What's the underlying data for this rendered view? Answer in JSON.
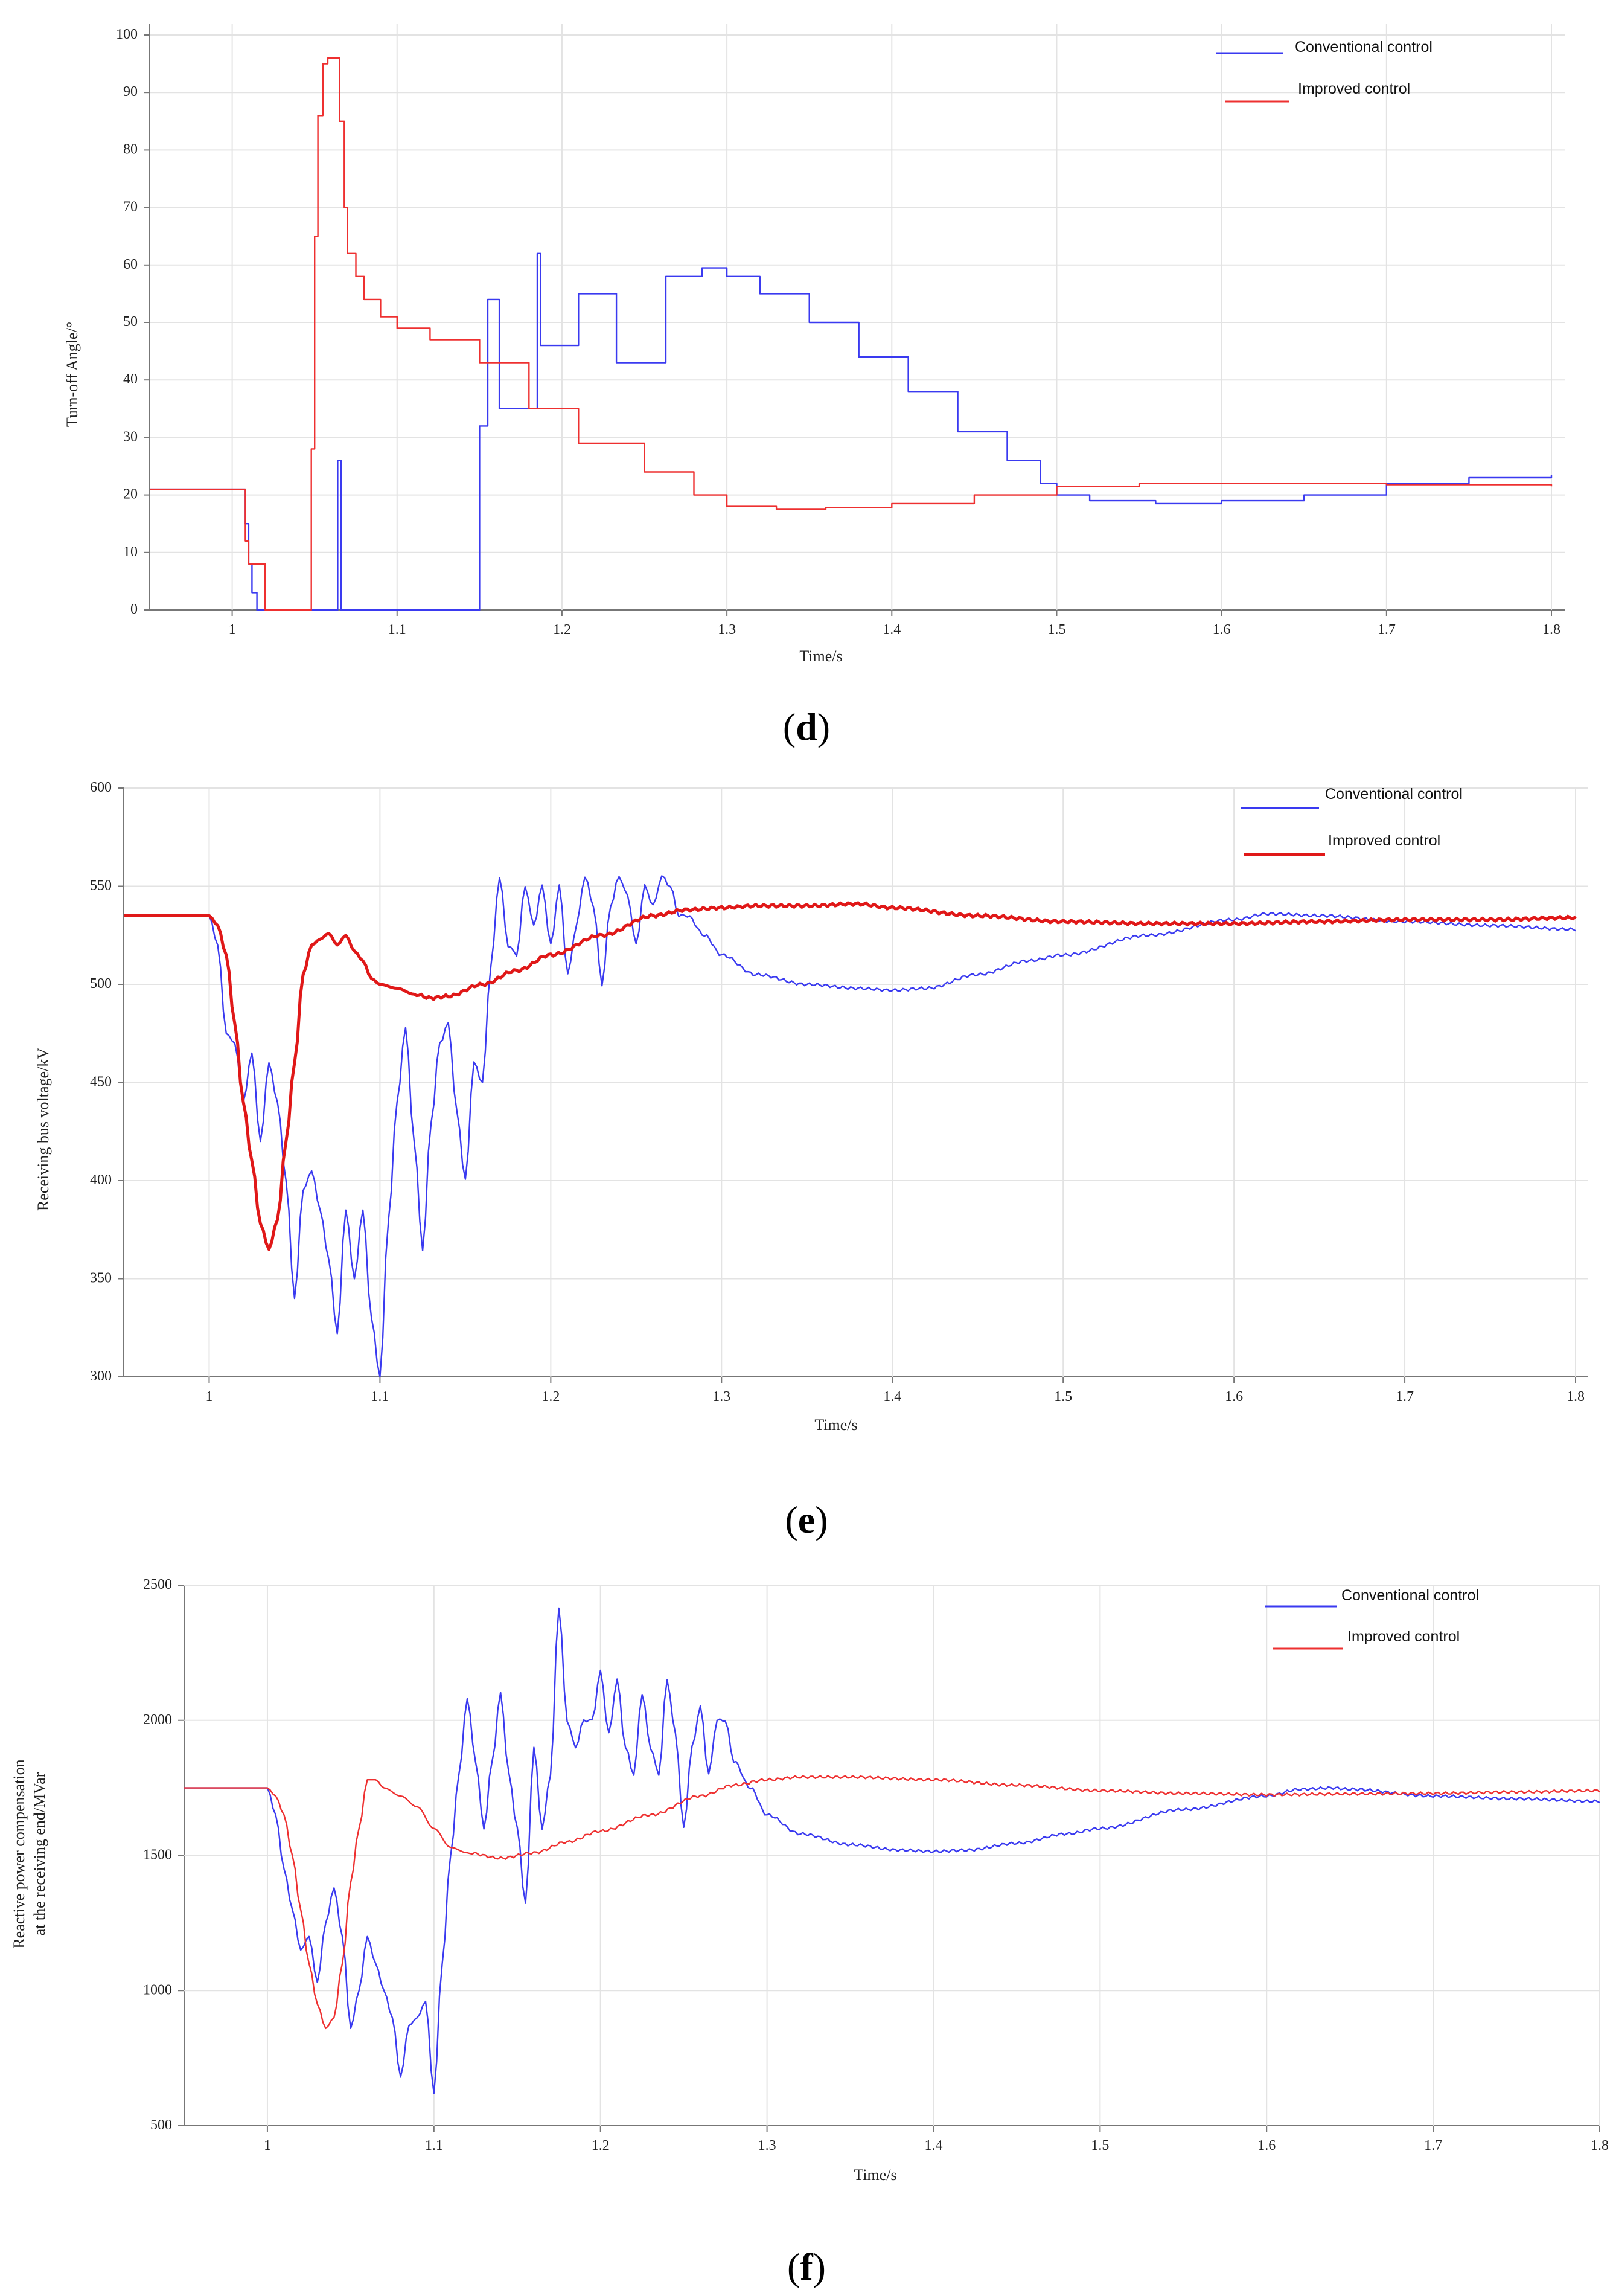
{
  "chart_data": [
    {
      "type": "line",
      "panel_label": "d",
      "xlabel": "Time/s",
      "ylabel": "Turn-off Angle/°",
      "xlim": [
        0.95,
        1.8
      ],
      "ylim": [
        0,
        100
      ],
      "xticks": [
        1,
        1.1,
        1.2,
        1.3,
        1.4,
        1.5,
        1.6,
        1.7,
        1.8
      ],
      "yticks": [
        0,
        10,
        20,
        30,
        40,
        50,
        60,
        70,
        80,
        90,
        100
      ],
      "series": [
        {
          "name": "Conventional control",
          "color": "#3a3af0",
          "step": true,
          "x": [
            0.95,
            1.005,
            1.008,
            1.01,
            1.012,
            1.015,
            1.064,
            1.064,
            1.066,
            1.066,
            1.15,
            1.15,
            1.155,
            1.155,
            1.162,
            1.162,
            1.185,
            1.185,
            1.187,
            1.187,
            1.21,
            1.21,
            1.233,
            1.233,
            1.263,
            1.263,
            1.275,
            1.285,
            1.3,
            1.32,
            1.35,
            1.38,
            1.41,
            1.44,
            1.47,
            1.49,
            1.5,
            1.52,
            1.56,
            1.6,
            1.65,
            1.7,
            1.75,
            1.8
          ],
          "y": [
            21,
            21,
            15,
            8,
            3,
            0,
            0,
            26,
            26,
            0,
            0,
            32,
            32,
            54,
            54,
            35,
            35,
            62,
            62,
            46,
            46,
            55,
            55,
            43,
            43,
            58,
            58,
            59.5,
            58,
            55,
            50,
            44,
            38,
            31,
            26,
            22,
            20,
            19,
            18.5,
            19,
            20,
            22,
            23,
            23.5
          ]
        },
        {
          "name": "Improved control",
          "color": "#ee3030",
          "step": true,
          "x": [
            0.95,
            1.005,
            1.008,
            1.01,
            1.02,
            1.02,
            1.046,
            1.048,
            1.05,
            1.052,
            1.055,
            1.058,
            1.065,
            1.068,
            1.07,
            1.075,
            1.08,
            1.09,
            1.1,
            1.12,
            1.15,
            1.18,
            1.21,
            1.25,
            1.28,
            1.3,
            1.33,
            1.36,
            1.4,
            1.45,
            1.5,
            1.55,
            1.6,
            1.7,
            1.8
          ],
          "y": [
            21,
            21,
            12,
            8,
            8,
            0,
            0,
            28,
            65,
            86,
            95,
            96,
            85,
            70,
            62,
            58,
            54,
            51,
            49,
            47,
            43,
            35,
            29,
            24,
            20,
            18,
            17.5,
            17.8,
            18.5,
            20,
            21.5,
            22,
            22,
            21.8,
            21.5
          ]
        }
      ]
    },
    {
      "type": "line",
      "panel_label": "e",
      "xlabel": "Time/s",
      "ylabel": "Receiving bus voltage/kV",
      "xlim": [
        0.95,
        1.8
      ],
      "ylim": [
        300,
        600
      ],
      "xticks": [
        1,
        1.1,
        1.2,
        1.3,
        1.4,
        1.5,
        1.6,
        1.7,
        1.8
      ],
      "yticks": [
        300,
        350,
        400,
        450,
        500,
        550,
        600
      ],
      "series": [
        {
          "name": "Conventional control",
          "color": "#3a3af0",
          "x": [
            0.95,
            1.0,
            1.005,
            1.01,
            1.015,
            1.02,
            1.025,
            1.03,
            1.035,
            1.04,
            1.045,
            1.05,
            1.055,
            1.06,
            1.065,
            1.07,
            1.075,
            1.08,
            1.085,
            1.09,
            1.095,
            1.1,
            1.105,
            1.11,
            1.115,
            1.12,
            1.125,
            1.13,
            1.135,
            1.14,
            1.145,
            1.15,
            1.155,
            1.16,
            1.165,
            1.17,
            1.175,
            1.18,
            1.185,
            1.19,
            1.195,
            1.2,
            1.205,
            1.21,
            1.215,
            1.22,
            1.225,
            1.23,
            1.235,
            1.24,
            1.245,
            1.25,
            1.255,
            1.26,
            1.265,
            1.27,
            1.275,
            1.28,
            1.29,
            1.3,
            1.32,
            1.35,
            1.38,
            1.4,
            1.42,
            1.45,
            1.48,
            1.5,
            1.55,
            1.6,
            1.62,
            1.65,
            1.7,
            1.75,
            1.8
          ],
          "y": [
            535,
            535,
            520,
            475,
            470,
            440,
            465,
            420,
            460,
            440,
            400,
            340,
            395,
            405,
            385,
            360,
            322,
            385,
            350,
            385,
            330,
            300,
            380,
            440,
            478,
            420,
            365,
            430,
            470,
            480,
            435,
            400,
            460,
            450,
            510,
            555,
            520,
            515,
            550,
            530,
            550,
            520,
            550,
            505,
            530,
            555,
            540,
            500,
            540,
            555,
            545,
            520,
            550,
            540,
            555,
            550,
            535,
            535,
            525,
            515,
            505,
            500,
            498,
            497,
            498,
            505,
            512,
            515,
            525,
            533,
            536,
            535,
            532,
            530,
            528
          ]
        },
        {
          "name": "Improved control",
          "color": "#e01818",
          "width": 5,
          "x": [
            0.95,
            1.0,
            1.005,
            1.01,
            1.015,
            1.02,
            1.025,
            1.03,
            1.035,
            1.04,
            1.045,
            1.05,
            1.055,
            1.06,
            1.065,
            1.07,
            1.075,
            1.08,
            1.085,
            1.09,
            1.095,
            1.1,
            1.11,
            1.12,
            1.13,
            1.14,
            1.16,
            1.18,
            1.2,
            1.23,
            1.26,
            1.28,
            1.3,
            1.32,
            1.35,
            1.38,
            1.4,
            1.45,
            1.5,
            1.55,
            1.6,
            1.65,
            1.7,
            1.75,
            1.8
          ],
          "y": [
            535,
            535,
            530,
            515,
            480,
            440,
            410,
            378,
            365,
            380,
            420,
            460,
            505,
            520,
            523,
            526,
            520,
            525,
            517,
            512,
            503,
            500,
            498,
            495,
            493,
            494,
            500,
            507,
            515,
            525,
            535,
            538,
            539,
            540,
            540,
            541,
            539,
            535,
            532,
            531,
            531,
            532,
            533,
            533,
            534
          ]
        }
      ]
    },
    {
      "type": "line",
      "panel_label": "f",
      "xlabel": "Time/s",
      "ylabel": "Reactive power compensation at the receiving end/MVar",
      "ylabel_lines": [
        "Reactive power compensation",
        "at the receiving end/MVar"
      ],
      "xlim": [
        0.95,
        1.8
      ],
      "ylim": [
        500,
        2500
      ],
      "xticks": [
        1,
        1.1,
        1.2,
        1.3,
        1.4,
        1.5,
        1.6,
        1.7,
        1.8
      ],
      "yticks": [
        500,
        1000,
        1500,
        2000,
        2500
      ],
      "series": [
        {
          "name": "Conventional control",
          "color": "#3a3af0",
          "x": [
            0.95,
            1.0,
            1.005,
            1.01,
            1.015,
            1.02,
            1.025,
            1.03,
            1.035,
            1.04,
            1.045,
            1.05,
            1.055,
            1.06,
            1.065,
            1.07,
            1.075,
            1.08,
            1.085,
            1.09,
            1.095,
            1.1,
            1.105,
            1.11,
            1.115,
            1.12,
            1.125,
            1.13,
            1.135,
            1.14,
            1.145,
            1.15,
            1.155,
            1.16,
            1.165,
            1.17,
            1.175,
            1.18,
            1.185,
            1.19,
            1.195,
            1.2,
            1.205,
            1.21,
            1.215,
            1.22,
            1.225,
            1.23,
            1.235,
            1.24,
            1.245,
            1.25,
            1.255,
            1.26,
            1.265,
            1.27,
            1.275,
            1.28,
            1.29,
            1.3,
            1.32,
            1.35,
            1.38,
            1.4,
            1.42,
            1.45,
            1.48,
            1.5,
            1.55,
            1.6,
            1.62,
            1.64,
            1.65,
            1.7,
            1.75,
            1.8
          ],
          "y": [
            1750,
            1750,
            1650,
            1450,
            1300,
            1150,
            1200,
            1030,
            1250,
            1380,
            1200,
            860,
            1000,
            1200,
            1100,
            1000,
            900,
            680,
            870,
            900,
            960,
            620,
            1100,
            1500,
            1800,
            2080,
            1850,
            1600,
            1850,
            2100,
            1800,
            1600,
            1320,
            1900,
            1600,
            1800,
            2420,
            2000,
            1900,
            2000,
            2000,
            2180,
            1950,
            2150,
            1900,
            1800,
            2100,
            1900,
            1800,
            2150,
            1950,
            1600,
            1900,
            2050,
            1800,
            2000,
            2000,
            1850,
            1750,
            1650,
            1580,
            1540,
            1520,
            1515,
            1520,
            1545,
            1580,
            1600,
            1670,
            1720,
            1745,
            1750,
            1745,
            1720,
            1710,
            1700
          ]
        },
        {
          "name": "Improved control",
          "color": "#ee3030",
          "x": [
            0.95,
            1.0,
            1.005,
            1.01,
            1.015,
            1.02,
            1.025,
            1.03,
            1.035,
            1.04,
            1.045,
            1.05,
            1.055,
            1.06,
            1.065,
            1.07,
            1.08,
            1.09,
            1.1,
            1.11,
            1.12,
            1.14,
            1.16,
            1.18,
            1.2,
            1.23,
            1.26,
            1.28,
            1.3,
            1.32,
            1.35,
            1.4,
            1.45,
            1.5,
            1.55,
            1.6,
            1.65,
            1.7,
            1.75,
            1.8
          ],
          "y": [
            1750,
            1750,
            1720,
            1650,
            1500,
            1300,
            1100,
            950,
            860,
            900,
            1100,
            1400,
            1600,
            1780,
            1780,
            1750,
            1720,
            1680,
            1600,
            1530,
            1510,
            1490,
            1510,
            1550,
            1590,
            1650,
            1720,
            1760,
            1780,
            1790,
            1790,
            1780,
            1760,
            1740,
            1730,
            1725,
            1728,
            1730,
            1735,
            1740
          ]
        }
      ]
    }
  ]
}
